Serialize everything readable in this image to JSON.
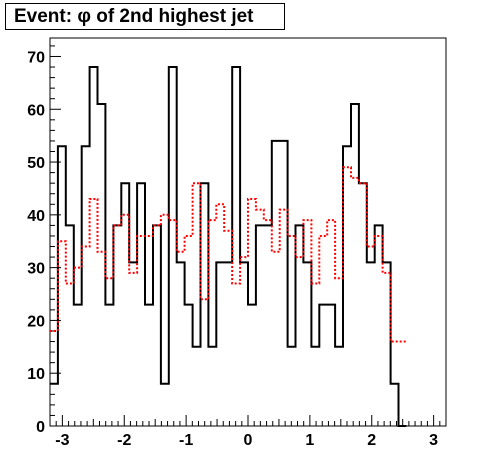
{
  "chart_data": {
    "type": "histogram",
    "title": "Event: φ of 2nd highest jet",
    "xlabel": "",
    "ylabel": "",
    "xlim": [
      -3.2,
      3.2
    ],
    "ylim": [
      0,
      73.5
    ],
    "x_ticks": [
      -3,
      -2,
      -1,
      0,
      1,
      2,
      3
    ],
    "y_ticks": [
      0,
      10,
      20,
      30,
      40,
      50,
      60,
      70
    ],
    "grid": false,
    "legend": "none",
    "bin_edges_start": -3.2,
    "bin_width": 0.128,
    "series": [
      {
        "color": "#000000",
        "style": "solid",
        "values": [
          8,
          53,
          38,
          23,
          53,
          68,
          61,
          23,
          38,
          46,
          31,
          46,
          23,
          38,
          8,
          68,
          31,
          23,
          15,
          46,
          15,
          31,
          31,
          68,
          31,
          23,
          38,
          38,
          54,
          54,
          15,
          38,
          31,
          15,
          23,
          23,
          15,
          53,
          61,
          46,
          31,
          38,
          31,
          8,
          0
        ]
      },
      {
        "color": "#ff0000",
        "style": "dotted",
        "values": [
          18,
          35,
          27,
          30,
          34,
          43,
          33,
          28,
          38,
          40,
          29,
          36,
          36,
          38,
          40,
          39,
          33,
          36,
          46,
          24,
          39,
          42,
          37,
          27,
          32,
          43,
          41,
          39,
          33,
          41,
          36,
          32,
          39,
          27,
          36,
          39,
          28,
          49,
          47,
          46,
          34,
          36,
          29,
          16,
          16
        ]
      }
    ]
  }
}
